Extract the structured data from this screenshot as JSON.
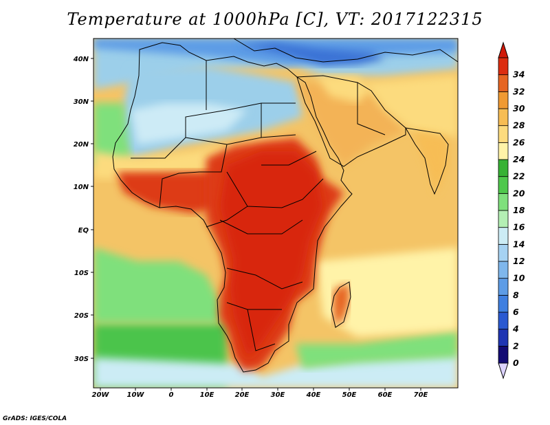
{
  "title": "Temperature at 1000hPa [C], VT: 2017122315",
  "credit": "GrADS: IGES/COLA",
  "lat_labels": [
    "40N",
    "30N",
    "20N",
    "10N",
    "EQ",
    "10S",
    "20S",
    "30S"
  ],
  "lon_labels": [
    "20W",
    "10W",
    "0",
    "10E",
    "20E",
    "30E",
    "40E",
    "50E",
    "60E",
    "70E"
  ],
  "map_extent": {
    "lon": [
      -22,
      80
    ],
    "lat": [
      -37,
      45
    ]
  },
  "colorbar": {
    "labels": [
      "0",
      "2",
      "4",
      "6",
      "8",
      "10",
      "12",
      "14",
      "16",
      "18",
      "20",
      "22",
      "24",
      "26",
      "28",
      "30",
      "32",
      "34"
    ],
    "colors": [
      "#120a73",
      "#1f35b3",
      "#2a59d1",
      "#3f7fe0",
      "#5d9ce6",
      "#7fb7ec",
      "#a6d2f2",
      "#ccecf5",
      "#b4efb4",
      "#7fe07c",
      "#4fc84c",
      "#37b235",
      "#fff3a8",
      "#fcdb7e",
      "#f7bd54",
      "#f09a33",
      "#e66522",
      "#dc2d10"
    ],
    "under_color": "#dcd3ff",
    "over_color": "#d11a0a"
  },
  "ocean_color": "#f4c466",
  "feature_colors": {
    "africa_north_desert": "#9ccfea",
    "sahara_pale": "#cdebf6",
    "mediterranean_deep": "#3a72d5",
    "arabia": "#f3b357",
    "africa_hot": "#dd3a14",
    "africa_core": "#d82810",
    "southern_ocean_green": "#4cc44c"
  }
}
